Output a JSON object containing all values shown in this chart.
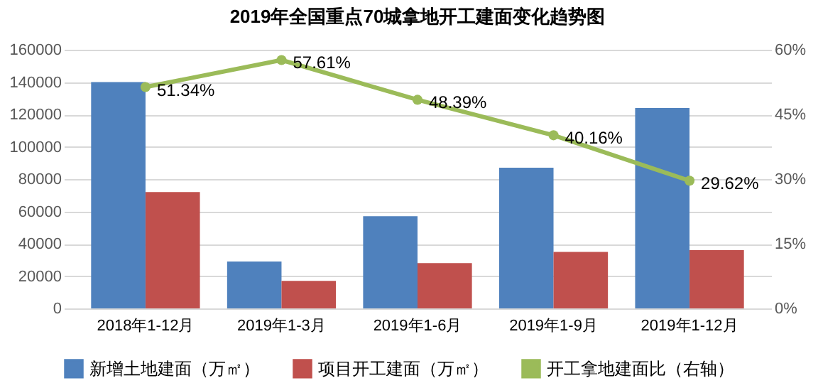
{
  "chart_data": {
    "type": "bar",
    "title": "2019年全国重点70城拿地开工建面变化趋势图",
    "categories": [
      "2018年1-12月",
      "2019年1-3月",
      "2019年1-6月",
      "2019年1-9月",
      "2019年1-12月"
    ],
    "series": [
      {
        "name": "新增土地建面（万㎡）",
        "color": "#4f81bd",
        "values": [
          140000,
          29000,
          57000,
          87000,
          124000
        ]
      },
      {
        "name": "项目开工建面（万㎡）",
        "color": "#c0504d",
        "values": [
          72000,
          17000,
          28000,
          35000,
          36000
        ]
      },
      {
        "name": "开工拿地建面比（右轴）",
        "type": "line",
        "axis": "y2",
        "color": "#9bbb59",
        "marker": "circle",
        "values": [
          51.34,
          57.61,
          48.39,
          40.16,
          29.62
        ],
        "value_labels": [
          "51.34%",
          "57.61%",
          "48.39%",
          "40.16%",
          "29.62%"
        ]
      }
    ],
    "ylim": [
      0,
      160000
    ],
    "yticks": [
      0,
      20000,
      40000,
      60000,
      80000,
      100000,
      120000,
      140000,
      160000
    ],
    "y2lim": [
      0,
      60
    ],
    "y2ticks": [
      {
        "value": 0,
        "label": "0%"
      },
      {
        "value": 15,
        "label": "15%"
      },
      {
        "value": 30,
        "label": "30%"
      },
      {
        "value": 45,
        "label": "45%"
      },
      {
        "value": 60,
        "label": "60%"
      }
    ],
    "grid": "y",
    "legend": "bottom"
  }
}
